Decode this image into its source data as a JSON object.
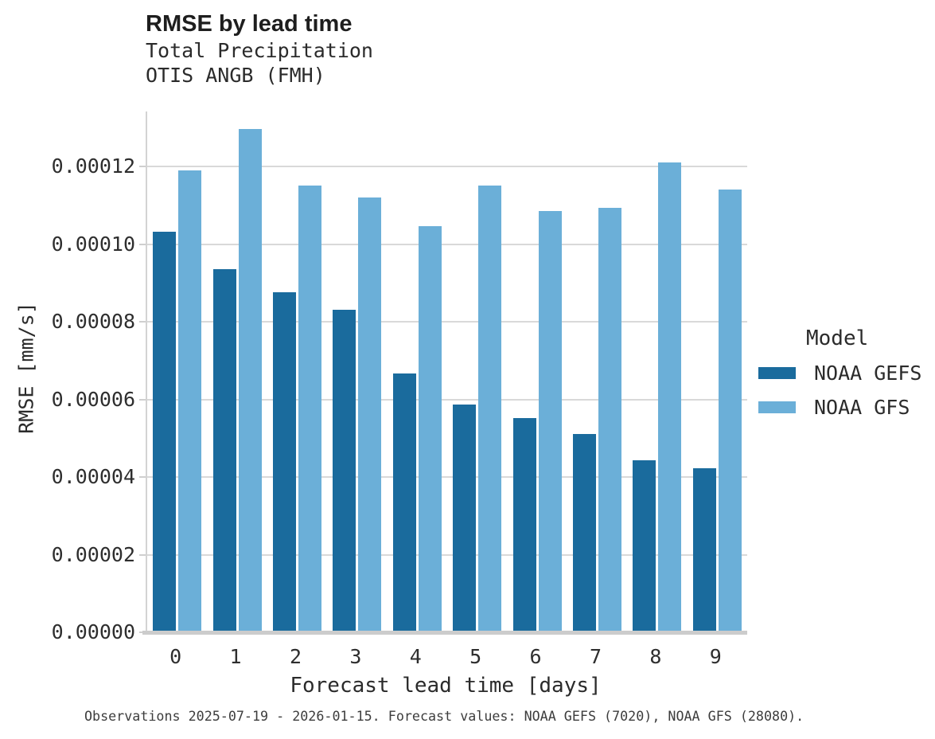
{
  "figure": {
    "title": "RMSE by lead time",
    "subtitle_line1": "Total Precipitation",
    "subtitle_line2": "OTIS ANGB (FMH)",
    "footer": "Observations 2025-07-19 - 2026-01-15. Forecast values: NOAA GEFS (7020), NOAA GFS (28080)."
  },
  "legend": {
    "title": "Model",
    "entries": [
      {
        "label": "NOAA GEFS",
        "color": "#1a6b9d"
      },
      {
        "label": "NOAA GFS",
        "color": "#6bafd8"
      }
    ]
  },
  "colors": {
    "gefs_bar": "#1a6b9d",
    "gfs_bar": "#6bafd8",
    "gridline": "#d9d9d9",
    "axis_line": "#cccccc"
  },
  "chart_data": {
    "type": "bar",
    "title": "RMSE by lead time",
    "subtitle": [
      "Total Precipitation",
      "OTIS ANGB (FMH)"
    ],
    "xlabel": "Forecast lead time [days]",
    "ylabel": "RMSE [mm/s]",
    "categories": [
      "0",
      "1",
      "2",
      "3",
      "4",
      "5",
      "6",
      "7",
      "8",
      "9"
    ],
    "series": [
      {
        "name": "NOAA GEFS",
        "color": "#1a6b9d",
        "values": [
          0.0001032,
          9.35e-05,
          8.77e-05,
          8.32e-05,
          6.66e-05,
          5.87e-05,
          5.53e-05,
          5.11e-05,
          4.44e-05,
          4.23e-05
        ]
      },
      {
        "name": "NOAA GFS",
        "color": "#6bafd8",
        "values": [
          0.000119,
          0.0001297,
          0.0001151,
          0.000112,
          0.0001046,
          0.0001151,
          0.0001085,
          0.0001093,
          0.000121,
          0.0001141
        ]
      }
    ],
    "ylim": [
      0,
      0.0001342
    ],
    "yticks": [
      {
        "value": 0.0,
        "label": "0.00000"
      },
      {
        "value": 2e-05,
        "label": "0.00002"
      },
      {
        "value": 4e-05,
        "label": "0.00004"
      },
      {
        "value": 6e-05,
        "label": "0.00006"
      },
      {
        "value": 8e-05,
        "label": "0.00008"
      },
      {
        "value": 0.0001,
        "label": "0.00010"
      },
      {
        "value": 0.00012,
        "label": "0.00012"
      }
    ],
    "grid": "horizontal",
    "legend_position": "right",
    "legend_title": "Model"
  }
}
